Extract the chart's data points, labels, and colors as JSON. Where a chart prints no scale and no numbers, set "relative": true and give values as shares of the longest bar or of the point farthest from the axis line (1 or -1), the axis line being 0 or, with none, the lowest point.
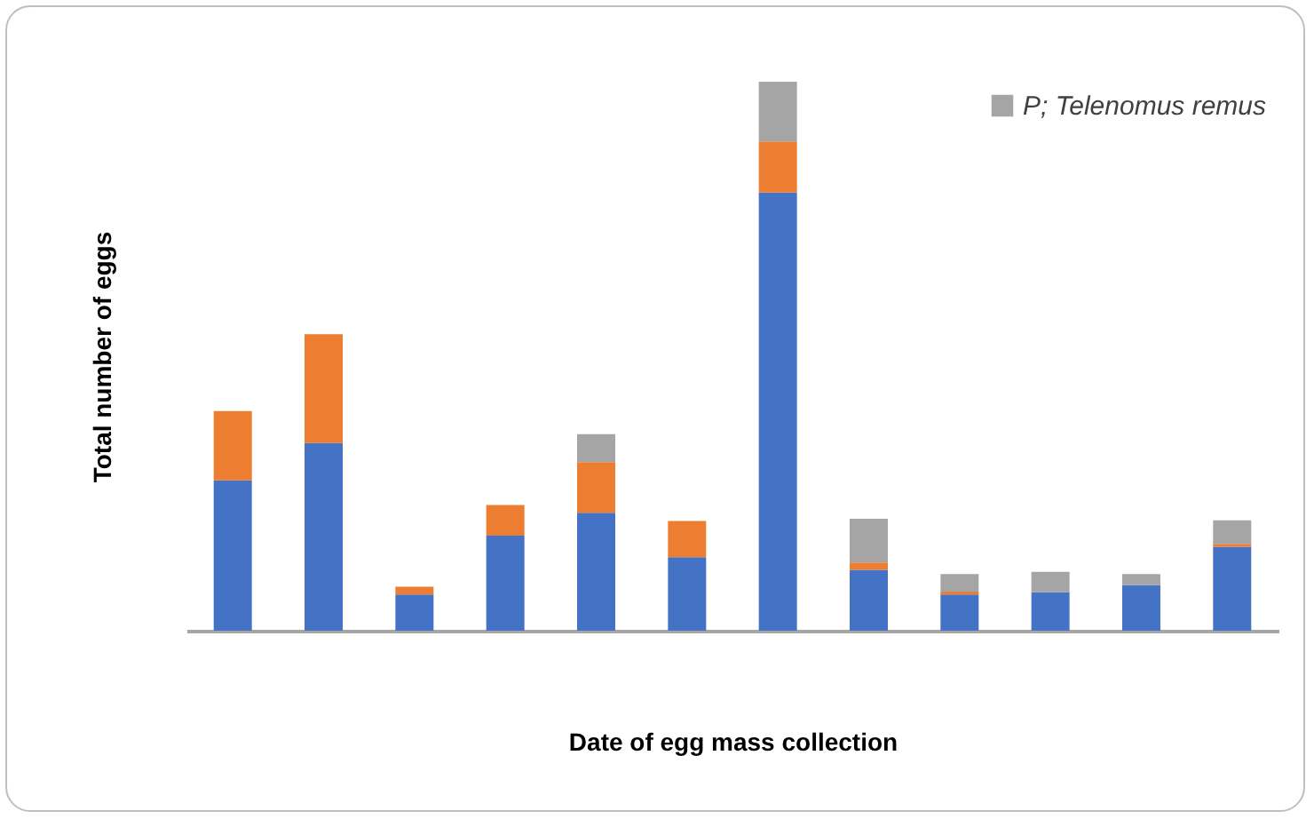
{
  "chart_data": {
    "type": "bar",
    "xlabel": "Date of egg mass collection",
    "ylabel": "Total number of eggs",
    "categories": [
      null,
      null,
      null,
      null,
      null,
      null,
      null,
      null,
      null,
      null,
      null,
      null
    ],
    "stacked": true,
    "relative": true,
    "legend": "top right",
    "series": [
      {
        "color": "#4472c4",
        "values": [
          0.274,
          0.342,
          0.066,
          0.173,
          0.215,
          0.134,
          0.798,
          0.111,
          0.066,
          0.07,
          0.083,
          0.153
        ]
      },
      {
        "color": "#ed7d31",
        "values": [
          0.126,
          0.198,
          0.014,
          0.056,
          0.092,
          0.066,
          0.093,
          0.013,
          0.005,
          0,
          0,
          0.005
        ]
      },
      {
        "name": "P; Telenomus remus",
        "color": "#a5a5a5",
        "values": [
          0,
          0,
          0,
          0,
          0.051,
          0,
          0.109,
          0.08,
          0.032,
          0.037,
          0.02,
          0.043
        ]
      }
    ]
  }
}
